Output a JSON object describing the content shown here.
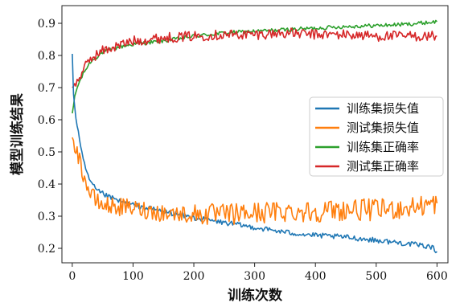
{
  "chart_data": {
    "type": "line",
    "xlabel": "训练次数",
    "ylabel": "模型训练结果",
    "xlim": [
      -17,
      618
    ],
    "ylim": [
      0.155,
      0.955
    ],
    "xticks": [
      0,
      100,
      200,
      300,
      400,
      500,
      600
    ],
    "yticks": [
      0.2,
      0.3,
      0.4,
      0.5,
      0.6,
      0.7,
      0.8,
      0.9
    ],
    "xtick_labels": [
      "0",
      "100",
      "200",
      "300",
      "400",
      "500",
      "600"
    ],
    "ytick_labels": [
      "0.2",
      "0.3",
      "0.4",
      "0.5",
      "0.6",
      "0.7",
      "0.8",
      "0.9"
    ],
    "grid": false,
    "legend_position": "right",
    "series": [
      {
        "name": "训练集损失值",
        "color": "#1f77b4",
        "x": [
          0,
          2,
          5,
          10,
          15,
          20,
          25,
          30,
          40,
          50,
          60,
          80,
          100,
          150,
          200,
          250,
          300,
          350,
          400,
          450,
          500,
          550,
          590,
          600
        ],
        "values": [
          0.805,
          0.68,
          0.62,
          0.56,
          0.5,
          0.46,
          0.43,
          0.405,
          0.38,
          0.37,
          0.36,
          0.345,
          0.335,
          0.315,
          0.295,
          0.28,
          0.265,
          0.25,
          0.24,
          0.235,
          0.225,
          0.215,
          0.205,
          0.19
        ]
      },
      {
        "name": "测试集损失值",
        "color": "#ff7f0e",
        "x": [
          0,
          5,
          10,
          15,
          20,
          25,
          30,
          40,
          50,
          70,
          100,
          150,
          200,
          250,
          300,
          350,
          400,
          450,
          500,
          550,
          600
        ],
        "values": [
          0.545,
          0.52,
          0.49,
          0.45,
          0.42,
          0.39,
          0.37,
          0.345,
          0.335,
          0.33,
          0.325,
          0.31,
          0.305,
          0.305,
          0.31,
          0.315,
          0.315,
          0.32,
          0.32,
          0.325,
          0.34
        ]
      },
      {
        "name": "训练集正确率",
        "color": "#2ca02c",
        "x": [
          0,
          5,
          10,
          20,
          30,
          50,
          75,
          100,
          150,
          200,
          250,
          300,
          350,
          400,
          450,
          500,
          550,
          600
        ],
        "values": [
          0.62,
          0.68,
          0.71,
          0.75,
          0.78,
          0.81,
          0.825,
          0.835,
          0.845,
          0.86,
          0.87,
          0.875,
          0.88,
          0.885,
          0.89,
          0.893,
          0.897,
          0.905
        ]
      },
      {
        "name": "测试集正确率",
        "color": "#d62728",
        "x": [
          0,
          5,
          10,
          15,
          20,
          30,
          50,
          75,
          100,
          150,
          200,
          250,
          300,
          350,
          400,
          450,
          500,
          550,
          600
        ],
        "values": [
          0.7,
          0.71,
          0.725,
          0.745,
          0.76,
          0.79,
          0.815,
          0.83,
          0.845,
          0.855,
          0.86,
          0.865,
          0.865,
          0.87,
          0.865,
          0.865,
          0.86,
          0.86,
          0.86
        ]
      }
    ]
  }
}
